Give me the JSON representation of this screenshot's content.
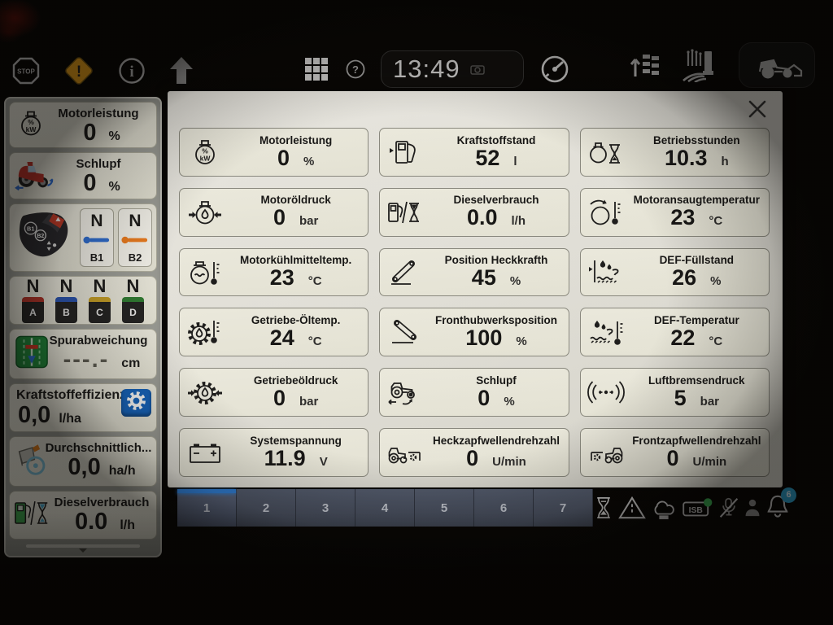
{
  "topbar": {
    "time": "13:49",
    "icons_left": [
      "stop-icon",
      "warning-icon",
      "info-icon",
      "up-arrow-icon"
    ],
    "icons_center": [
      "apps-grid-icon",
      "help-icon"
    ],
    "icon_after_time": "camera-icon",
    "icon_gauge": "gauge-icon",
    "icons_right": [
      "work-list-icon",
      "farm-icon"
    ],
    "machine_button_icon": "tractor-icon"
  },
  "sidebar": {
    "motorleistung": {
      "icon": "engine-power-icon",
      "label": "Motorleistung",
      "value": "0",
      "unit": "%"
    },
    "schlupf": {
      "icon": "tractor-red-icon",
      "label": "Schlupf",
      "value": "0",
      "unit": "%"
    },
    "transmission": {
      "icon": "joystick-icon",
      "left": {
        "value": "N",
        "lever": "lever-blue-icon",
        "label": "B1"
      },
      "right": {
        "value": "N",
        "lever": "lever-orange-icon",
        "label": "B2"
      }
    },
    "scv": {
      "items": [
        {
          "value": "N",
          "key": "A",
          "color": "#b5342a"
        },
        {
          "value": "N",
          "key": "B",
          "color": "#2a56b5"
        },
        {
          "value": "N",
          "key": "C",
          "color": "#c9a227"
        },
        {
          "value": "N",
          "key": "D",
          "color": "#2f7d33"
        }
      ]
    },
    "spurabweichung": {
      "icon": "guidance-icon",
      "label": "Spurabweichung",
      "value": "---.-",
      "unit": "cm"
    },
    "kraftstoffeffizienz": {
      "label": "Kraftstoffeffizienz",
      "value": "0,0",
      "unit": "l/ha",
      "settings_icon": "settings-gear-icon"
    },
    "durchschnittlich": {
      "icon": "avg-area-icon",
      "label": "Durchschnittlich...",
      "value": "0,0",
      "unit": "ha/h"
    },
    "dieselverbrauch": {
      "icon": "fuel-hourglass-green-icon",
      "label": "Dieselverbrauch",
      "value": "0.0",
      "unit": "l/h"
    }
  },
  "panel": {
    "close_icon": "close-icon",
    "tiles": [
      {
        "icon": "engine-power-icon",
        "label": "Motorleistung",
        "value": "0",
        "unit": "%"
      },
      {
        "icon": "fuel-level-icon",
        "label": "Kraftstoffstand",
        "value": "52",
        "unit": "l"
      },
      {
        "icon": "operating-hours-icon",
        "label": "Betriebsstunden",
        "value": "10.3",
        "unit": "h"
      },
      {
        "icon": "engine-oil-pressure-icon",
        "label": "Motoröldruck",
        "value": "0",
        "unit": "bar"
      },
      {
        "icon": "diesel-consumption-icon",
        "label": "Dieselverbrauch",
        "value": "0.0",
        "unit": "l/h"
      },
      {
        "icon": "intake-temp-icon",
        "label": "Motoransaugtemperatur",
        "value": "23",
        "unit": "°C"
      },
      {
        "icon": "coolant-temp-icon",
        "label": "Motorkühlmitteltemp.",
        "value": "23",
        "unit": "°C"
      },
      {
        "icon": "rear-hitch-icon",
        "label": "Position Heckkrafth",
        "value": "45",
        "unit": "%"
      },
      {
        "icon": "def-level-icon",
        "label": "DEF-Füllstand",
        "value": "26",
        "unit": "%"
      },
      {
        "icon": "gearbox-oil-temp-icon",
        "label": "Getriebe-Öltemp.",
        "value": "24",
        "unit": "°C"
      },
      {
        "icon": "front-hitch-icon",
        "label": "Fronthubwerksposition",
        "value": "100",
        "unit": "%"
      },
      {
        "icon": "def-temp-icon",
        "label": "DEF-Temperatur",
        "value": "22",
        "unit": "°C"
      },
      {
        "icon": "gearbox-oil-pressure-icon",
        "label": "Getriebeöldruck",
        "value": "0",
        "unit": "bar"
      },
      {
        "icon": "slip-icon",
        "label": "Schlupf",
        "value": "0",
        "unit": "%"
      },
      {
        "icon": "air-brake-icon",
        "label": "Luftbremsendruck",
        "value": "5",
        "unit": "bar"
      },
      {
        "icon": "battery-icon",
        "label": "Systemspannung",
        "value": "11.9",
        "unit": "V"
      },
      {
        "icon": "rear-pto-icon",
        "label": "Heckzapfwellendrehzahl",
        "value": "0",
        "unit": "U/min"
      },
      {
        "icon": "front-pto-icon",
        "label": "Frontzapfwellendrehzahl",
        "value": "0",
        "unit": "U/min"
      }
    ]
  },
  "pagination": {
    "pages": [
      "1",
      "2",
      "3",
      "4",
      "5",
      "6",
      "7"
    ],
    "active_index": 0
  },
  "statusbar": {
    "icons": [
      "hourglass-status-icon",
      "road-warning-icon",
      "remote-display-icon",
      "isb-icon",
      "mic-muted-icon",
      "operator-icon"
    ],
    "isb_label": "ISB",
    "bell_icon": "bell-icon",
    "bell_badge": "6"
  },
  "colors": {
    "accent_blue": "#2e7fd9",
    "warning_orange": "#f0a31b",
    "badge_blue": "#2aa3d4",
    "isb_green": "#3cb357",
    "settings_blue": "#1565c0"
  }
}
